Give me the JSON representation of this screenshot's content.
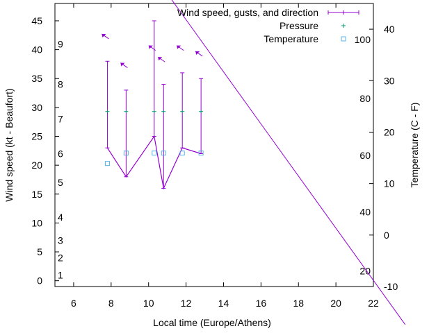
{
  "chart_data": {
    "type": "line",
    "title": "",
    "xlabel": "Local time (Europe/Athens)",
    "ylabel": "Wind speed (kt - Beaufort)",
    "y2label": "Temperature (C - F)",
    "xlim": [
      5,
      22
    ],
    "ylim": [
      -1,
      48
    ],
    "y2lim": [
      -10,
      45
    ],
    "x_ticks": [
      6,
      8,
      10,
      12,
      14,
      16,
      18,
      20,
      22
    ],
    "y_ticks": [
      0,
      5,
      10,
      15,
      20,
      25,
      30,
      35,
      40,
      45
    ],
    "y2_ticks": [
      -10,
      0,
      10,
      20,
      30,
      40
    ],
    "beaufort_labels": [
      {
        "label": "1",
        "y": 1
      },
      {
        "label": "2",
        "y": 4
      },
      {
        "label": "3",
        "y": 7
      },
      {
        "label": "4",
        "y": 11
      },
      {
        "label": "5",
        "y": 17
      },
      {
        "label": "6",
        "y": 22
      },
      {
        "label": "7",
        "y": 28
      },
      {
        "label": "8",
        "y": 34
      },
      {
        "label": "9",
        "y": 41
      }
    ],
    "fahrenheit_labels": [
      {
        "label": "20",
        "y2": -7
      },
      {
        "label": "40",
        "y2": 4.5
      },
      {
        "label": "60",
        "y2": 15.5
      },
      {
        "label": "80",
        "y2": 26.5
      },
      {
        "label": "100",
        "y2": 38
      }
    ],
    "legend": {
      "position": "top-right",
      "entries": [
        {
          "label": "Wind speed, gusts, and direction",
          "color": "#9400d3"
        },
        {
          "label": "Pressure",
          "color": "#009e73"
        },
        {
          "label": "Temperature",
          "color": "#56b4e9"
        }
      ]
    },
    "series": [
      {
        "name": "Wind speed, gusts, and direction",
        "color": "#9400d3",
        "x": [
          7.8,
          8.8,
          10.3,
          10.8,
          11.8,
          12.8
        ],
        "speed": [
          23,
          18,
          25,
          16,
          23,
          22
        ],
        "gust": [
          38,
          33,
          45,
          34,
          36,
          35
        ],
        "direction_arrow_y": [
          42,
          37,
          40,
          38,
          40,
          39
        ]
      },
      {
        "name": "Pressure",
        "color": "#009e73",
        "x": [
          7.8,
          8.8,
          10.3,
          10.8,
          11.8,
          12.8
        ],
        "y": [
          29.3,
          29.3,
          29.3,
          29.3,
          29.3,
          29.3
        ]
      },
      {
        "name": "Temperature",
        "color": "#56b4e9",
        "x": [
          7.8,
          8.8,
          10.3,
          10.8,
          11.8,
          12.8
        ],
        "y": [
          20.3,
          22.1,
          22.1,
          22.1,
          22.1,
          22.1
        ]
      }
    ],
    "diagonal_line": {
      "color": "#9400d3",
      "x": [
        11.2,
        23.7
      ],
      "y": [
        48.8,
        -7.6
      ]
    }
  }
}
